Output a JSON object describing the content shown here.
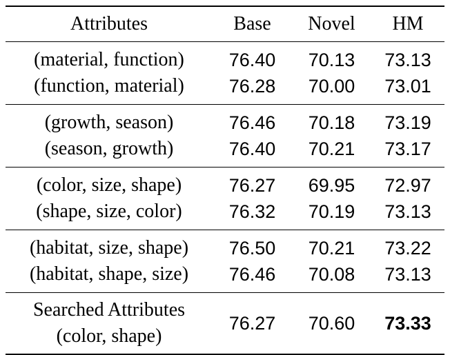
{
  "table": {
    "headers": [
      "Attributes",
      "Base",
      "Novel",
      "HM"
    ],
    "groups": [
      {
        "rows": [
          {
            "attributes": "(material, function)",
            "base": "76.40",
            "novel": "70.13",
            "hm": "73.13"
          },
          {
            "attributes": "(function, material)",
            "base": "76.28",
            "novel": "70.00",
            "hm": "73.01"
          }
        ]
      },
      {
        "rows": [
          {
            "attributes": "(growth, season)",
            "base": "76.46",
            "novel": "70.18",
            "hm": "73.19"
          },
          {
            "attributes": "(season, growth)",
            "base": "76.40",
            "novel": "70.21",
            "hm": "73.17"
          }
        ]
      },
      {
        "rows": [
          {
            "attributes": "(color, size, shape)",
            "base": "76.27",
            "novel": "69.95",
            "hm": "72.97"
          },
          {
            "attributes": "(shape, size, color)",
            "base": "76.32",
            "novel": "70.19",
            "hm": "73.13"
          }
        ]
      },
      {
        "rows": [
          {
            "attributes": "(habitat, size, shape)",
            "base": "76.50",
            "novel": "70.21",
            "hm": "73.22"
          },
          {
            "attributes": "(habitat, shape, size)",
            "base": "76.46",
            "novel": "70.08",
            "hm": "73.13"
          }
        ]
      }
    ],
    "final_row": {
      "attributes_line1": "Searched Attributes",
      "attributes_line2": "(color, shape)",
      "base": "76.27",
      "novel": "70.60",
      "hm": "73.33",
      "hm_bold": true
    }
  }
}
